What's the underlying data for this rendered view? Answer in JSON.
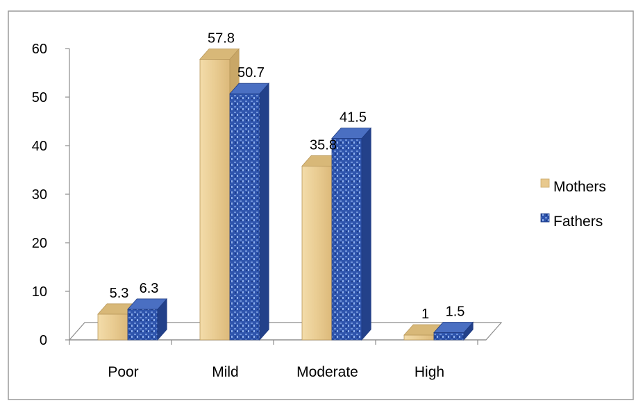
{
  "chart_data": {
    "type": "bar",
    "title": "",
    "xlabel": "",
    "ylabel": "",
    "categories": [
      "Poor",
      "Mild",
      "Moderate",
      "High"
    ],
    "series": [
      {
        "name": "Mothers",
        "values": [
          5.3,
          57.8,
          35.8,
          1
        ],
        "labels": [
          "5.3",
          "57.8",
          "35.8",
          "1"
        ]
      },
      {
        "name": "Fathers",
        "values": [
          6.3,
          50.7,
          41.5,
          1.5
        ],
        "labels": [
          "6.3",
          "50.7",
          "41.5",
          "1.5"
        ]
      }
    ],
    "ylim": [
      0,
      60
    ],
    "yticks": [
      "0",
      "10",
      "20",
      "30",
      "40",
      "50",
      "60"
    ],
    "grid": false,
    "legend_position": "right",
    "style": "3d-clustered-column",
    "colors": {
      "Mothers": "#e8c98e",
      "Fathers": "#3a5fb8"
    }
  }
}
